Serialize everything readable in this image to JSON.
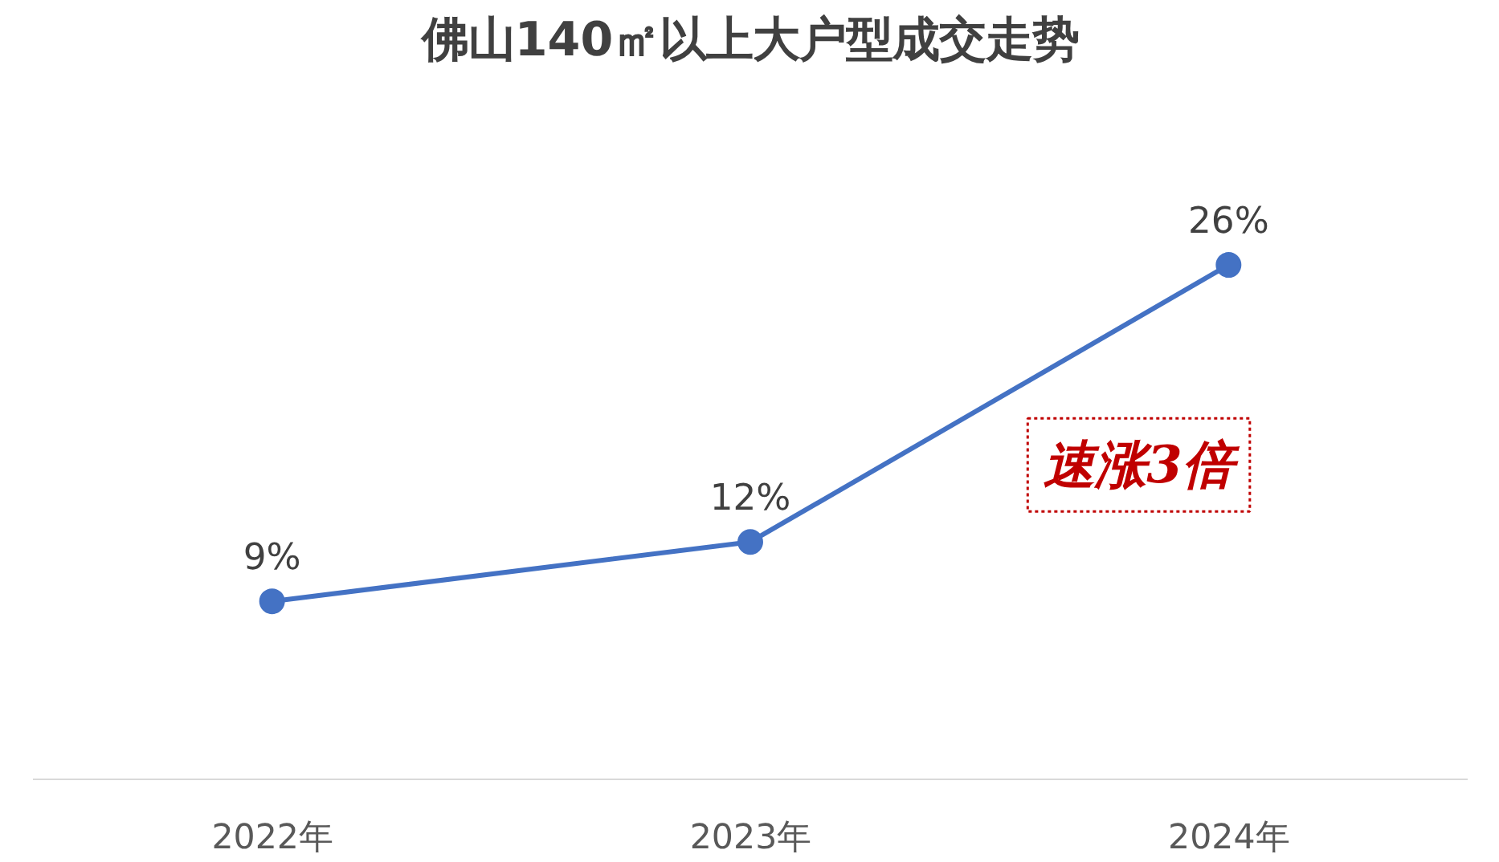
{
  "chart_data": {
    "type": "line",
    "title": "佛山140㎡以上大户型成交走势",
    "categories": [
      "2022年",
      "2023年",
      "2024年"
    ],
    "series": [
      {
        "color": "#4472c4",
        "values": [
          9,
          12,
          26
        ],
        "value_labels": [
          "9%",
          "12%",
          "26%"
        ]
      }
    ],
    "marker": "circle",
    "grid": false,
    "annotations": [
      "速涨3倍"
    ]
  }
}
